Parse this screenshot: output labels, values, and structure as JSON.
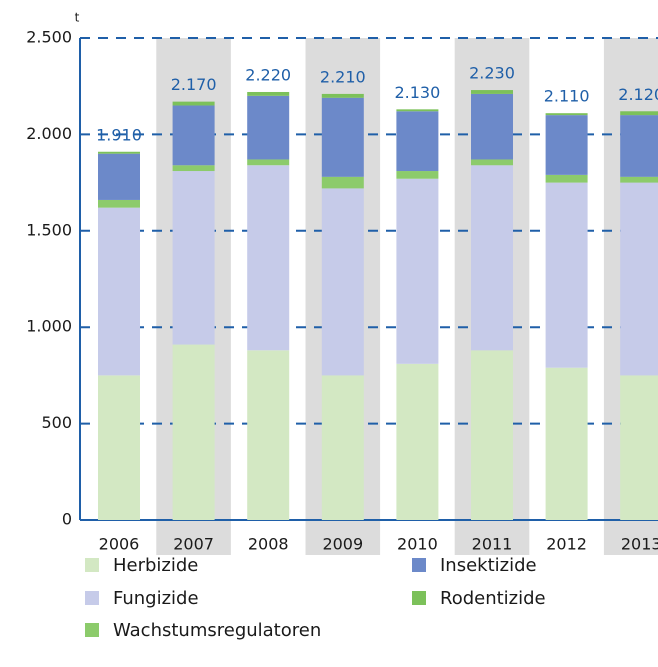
{
  "chart_data": {
    "type": "stacked_bar",
    "y_label": "t",
    "categories": [
      "2006",
      "2007",
      "2008",
      "2009",
      "2010",
      "2011",
      "2012",
      "2013"
    ],
    "series": [
      {
        "name": "Herbizide",
        "color": "#d3e8c3",
        "values": [
          750,
          910,
          880,
          750,
          810,
          880,
          790,
          750
        ]
      },
      {
        "name": "Fungizide",
        "color": "#c6cbe9",
        "values": [
          870,
          900,
          960,
          970,
          960,
          960,
          960,
          1000
        ]
      },
      {
        "name": "Wachstumsregulatoren",
        "color": "#8ccb6b",
        "values": [
          40,
          30,
          30,
          60,
          40,
          30,
          40,
          30
        ]
      },
      {
        "name": "Insektizide",
        "color": "#6c89c9",
        "values": [
          240,
          310,
          330,
          410,
          310,
          340,
          310,
          320
        ]
      },
      {
        "name": "Rodentizide",
        "color": "#7cc15a",
        "values": [
          10,
          20,
          20,
          20,
          10,
          20,
          10,
          20
        ]
      }
    ],
    "totals": {
      "values": [
        1910,
        2170,
        2220,
        2210,
        2130,
        2230,
        2110,
        2120
      ],
      "value_labels": [
        "1.910",
        "2.170",
        "2.220",
        "2.210",
        "2.130",
        "2.230",
        "2.110",
        "2.120"
      ]
    },
    "ylim": [
      0,
      2500
    ],
    "yticks": [
      0,
      500,
      {
        "value": 1000,
        "label": "1.000"
      },
      {
        "value": 1500,
        "label": "1.500"
      },
      {
        "value": 2000,
        "label": "2.000"
      },
      {
        "value": 2500,
        "label": "2.500"
      }
    ],
    "grid": true
  }
}
